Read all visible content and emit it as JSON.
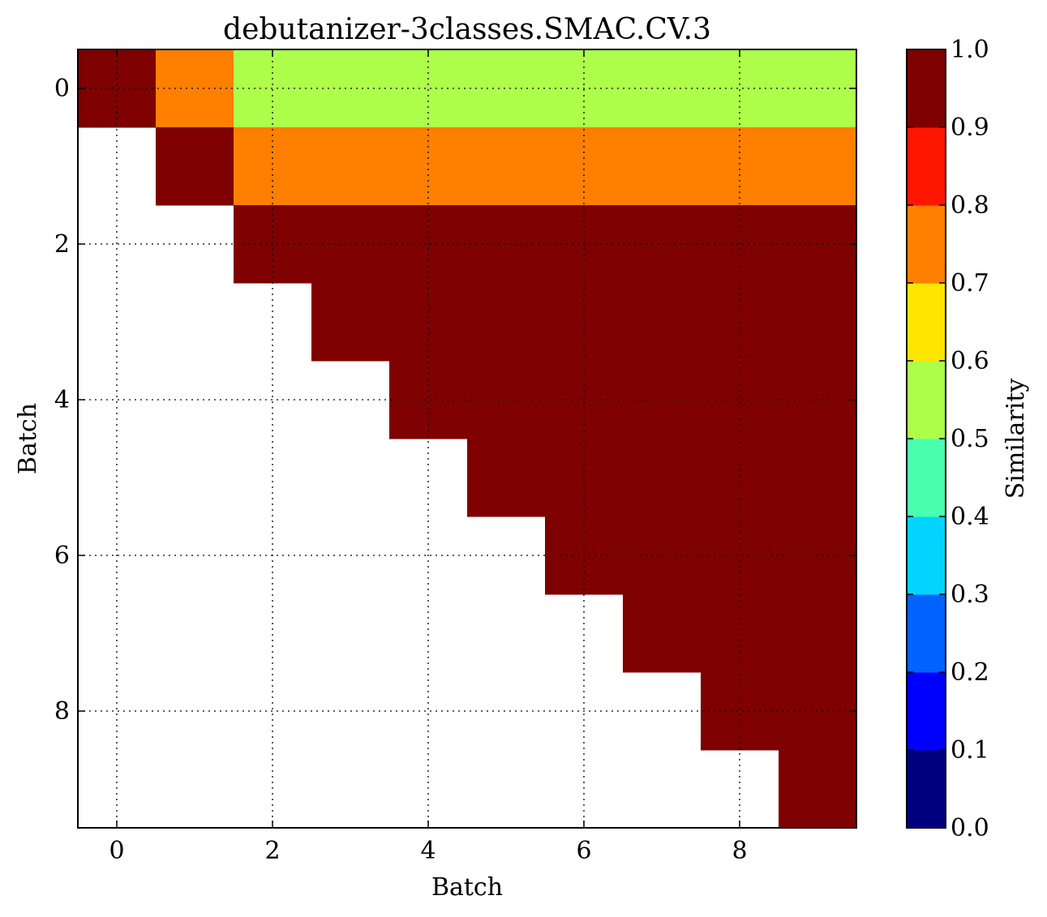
{
  "chart_data": {
    "type": "heatmap",
    "title": "debutanizer-3classes.SMAC.CV.3",
    "xlabel": "Batch",
    "ylabel": "Batch",
    "x_ticks": [
      "0",
      "2",
      "4",
      "6",
      "8"
    ],
    "y_ticks": [
      "0",
      "2",
      "4",
      "6",
      "8"
    ],
    "xlim": [
      -0.5,
      9.5
    ],
    "ylim": [
      9.5,
      -0.5
    ],
    "grid": true,
    "rows": 10,
    "cols": 10,
    "values": [
      [
        0.95,
        0.75,
        0.55,
        0.55,
        0.55,
        0.55,
        0.55,
        0.55,
        0.55,
        0.55
      ],
      [
        null,
        0.95,
        0.75,
        0.75,
        0.75,
        0.75,
        0.75,
        0.75,
        0.75,
        0.75
      ],
      [
        null,
        null,
        0.95,
        0.95,
        0.95,
        0.95,
        0.95,
        0.95,
        0.95,
        0.95
      ],
      [
        null,
        null,
        null,
        0.95,
        0.95,
        0.95,
        0.95,
        0.95,
        0.95,
        0.95
      ],
      [
        null,
        null,
        null,
        null,
        0.95,
        0.95,
        0.95,
        0.95,
        0.95,
        0.95
      ],
      [
        null,
        null,
        null,
        null,
        null,
        0.95,
        0.95,
        0.95,
        0.95,
        0.95
      ],
      [
        null,
        null,
        null,
        null,
        null,
        null,
        0.95,
        0.95,
        0.95,
        0.95
      ],
      [
        null,
        null,
        null,
        null,
        null,
        null,
        null,
        0.95,
        0.95,
        0.95
      ],
      [
        null,
        null,
        null,
        null,
        null,
        null,
        null,
        null,
        0.95,
        0.95
      ],
      [
        null,
        null,
        null,
        null,
        null,
        null,
        null,
        null,
        null,
        0.95
      ]
    ],
    "colorbar": {
      "label": "Similarity",
      "range": [
        0.0,
        1.0
      ],
      "ticks": [
        "0.0",
        "0.1",
        "0.2",
        "0.3",
        "0.4",
        "0.5",
        "0.6",
        "0.7",
        "0.8",
        "0.9",
        "1.0"
      ],
      "colors": [
        "#00007f",
        "#0000ff",
        "#0062ff",
        "#00d4ff",
        "#4affad",
        "#adff4a",
        "#ffe500",
        "#ff7f00",
        "#ff1600",
        "#7f0000"
      ]
    }
  }
}
